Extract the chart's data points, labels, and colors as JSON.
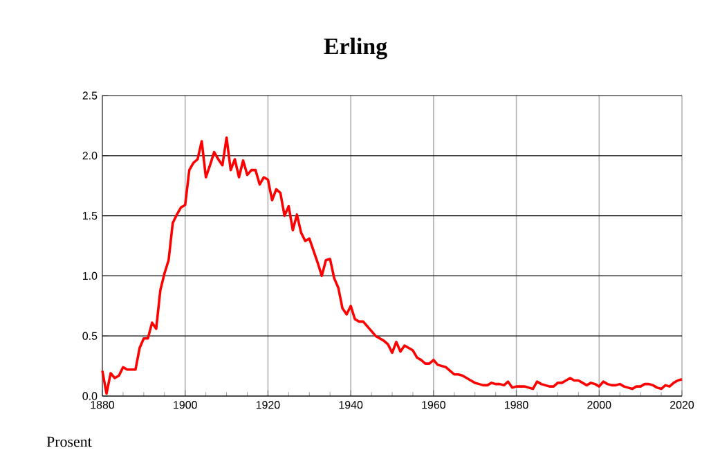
{
  "chart_data": {
    "type": "line",
    "title": "Erling",
    "ylabel": "Prosent",
    "x": [
      1880,
      1881,
      1882,
      1883,
      1884,
      1885,
      1886,
      1887,
      1888,
      1889,
      1890,
      1891,
      1892,
      1893,
      1894,
      1895,
      1896,
      1897,
      1898,
      1899,
      1900,
      1901,
      1902,
      1903,
      1904,
      1905,
      1906,
      1907,
      1908,
      1909,
      1910,
      1911,
      1912,
      1913,
      1914,
      1915,
      1916,
      1917,
      1918,
      1919,
      1920,
      1921,
      1922,
      1923,
      1924,
      1925,
      1926,
      1927,
      1928,
      1929,
      1930,
      1931,
      1932,
      1933,
      1934,
      1935,
      1936,
      1937,
      1938,
      1939,
      1940,
      1941,
      1942,
      1943,
      1944,
      1945,
      1946,
      1947,
      1948,
      1949,
      1950,
      1951,
      1952,
      1953,
      1954,
      1955,
      1956,
      1957,
      1958,
      1959,
      1960,
      1961,
      1962,
      1963,
      1964,
      1965,
      1966,
      1967,
      1968,
      1969,
      1970,
      1971,
      1972,
      1973,
      1974,
      1975,
      1976,
      1977,
      1978,
      1979,
      1980,
      1981,
      1982,
      1983,
      1984,
      1985,
      1986,
      1987,
      1988,
      1989,
      1990,
      1991,
      1992,
      1993,
      1994,
      1995,
      1996,
      1997,
      1998,
      1999,
      2000,
      2001,
      2002,
      2003,
      2004,
      2005,
      2006,
      2007,
      2008,
      2009,
      2010,
      2011,
      2012,
      2013,
      2014,
      2015,
      2016,
      2017,
      2018,
      2019,
      2020
    ],
    "series": [
      {
        "color": "#ff0000",
        "values": [
          0.21,
          0.02,
          0.19,
          0.15,
          0.17,
          0.24,
          0.22,
          0.22,
          0.22,
          0.4,
          0.48,
          0.48,
          0.61,
          0.56,
          0.88,
          1.02,
          1.13,
          1.44,
          1.51,
          1.57,
          1.59,
          1.88,
          1.94,
          1.97,
          2.12,
          1.82,
          1.92,
          2.03,
          1.97,
          1.92,
          2.15,
          1.88,
          1.97,
          1.82,
          1.96,
          1.84,
          1.88,
          1.88,
          1.76,
          1.82,
          1.8,
          1.63,
          1.72,
          1.69,
          1.5,
          1.58,
          1.38,
          1.51,
          1.36,
          1.29,
          1.31,
          1.21,
          1.11,
          1.0,
          1.13,
          1.14,
          0.98,
          0.9,
          0.73,
          0.68,
          0.75,
          0.64,
          0.62,
          0.62,
          0.58,
          0.54,
          0.5,
          0.48,
          0.46,
          0.43,
          0.36,
          0.45,
          0.37,
          0.42,
          0.4,
          0.38,
          0.32,
          0.3,
          0.27,
          0.27,
          0.3,
          0.26,
          0.25,
          0.24,
          0.21,
          0.18,
          0.18,
          0.17,
          0.15,
          0.13,
          0.11,
          0.1,
          0.09,
          0.09,
          0.11,
          0.1,
          0.1,
          0.09,
          0.12,
          0.07,
          0.08,
          0.08,
          0.08,
          0.07,
          0.06,
          0.12,
          0.1,
          0.09,
          0.08,
          0.08,
          0.11,
          0.11,
          0.13,
          0.15,
          0.13,
          0.13,
          0.11,
          0.09,
          0.11,
          0.1,
          0.08,
          0.12,
          0.1,
          0.09,
          0.09,
          0.1,
          0.08,
          0.07,
          0.06,
          0.08,
          0.08,
          0.1,
          0.1,
          0.09,
          0.07,
          0.06,
          0.09,
          0.08,
          0.11,
          0.13,
          0.14
        ]
      }
    ],
    "xlim": [
      1880,
      2020
    ],
    "xticks": [
      1880,
      1900,
      1920,
      1940,
      1960,
      1980,
      2000,
      2020
    ],
    "ylim": [
      0,
      2.5
    ],
    "yticks": [
      {
        "value": 0,
        "label": "0.0"
      },
      {
        "value": 0.5,
        "label": "0.5"
      },
      {
        "value": 1,
        "label": "1.0"
      },
      {
        "value": 1.5,
        "label": "1.5"
      },
      {
        "value": 2,
        "label": "2.0"
      },
      {
        "value": 2.5,
        "label": "2.5"
      }
    ],
    "grid": true,
    "marker": "none",
    "line_style": "solid"
  }
}
